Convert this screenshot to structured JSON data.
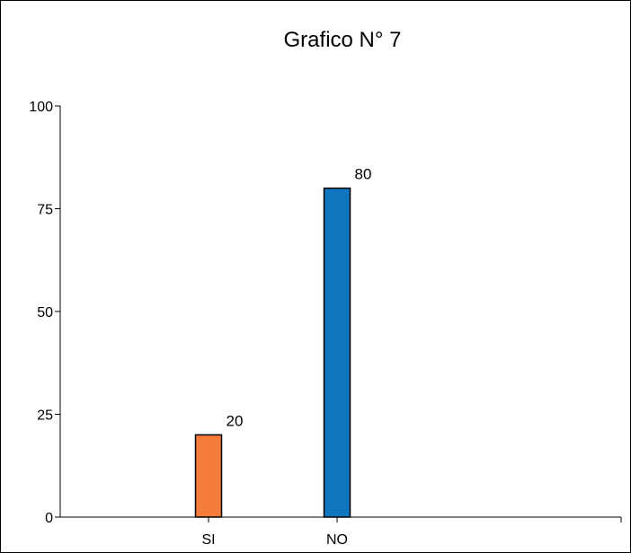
{
  "chart_data": {
    "type": "bar",
    "title": "Grafico N° 7",
    "xlabel": "",
    "ylabel": "",
    "categories": [
      "SI",
      "NO"
    ],
    "values": [
      20,
      80
    ],
    "colors": [
      "#f47b3a",
      "#0e77c0"
    ],
    "ylim": [
      0,
      100
    ],
    "yticks": [
      0,
      25,
      50,
      75,
      100
    ],
    "grid": false,
    "legend": "none",
    "data_labels": true
  }
}
